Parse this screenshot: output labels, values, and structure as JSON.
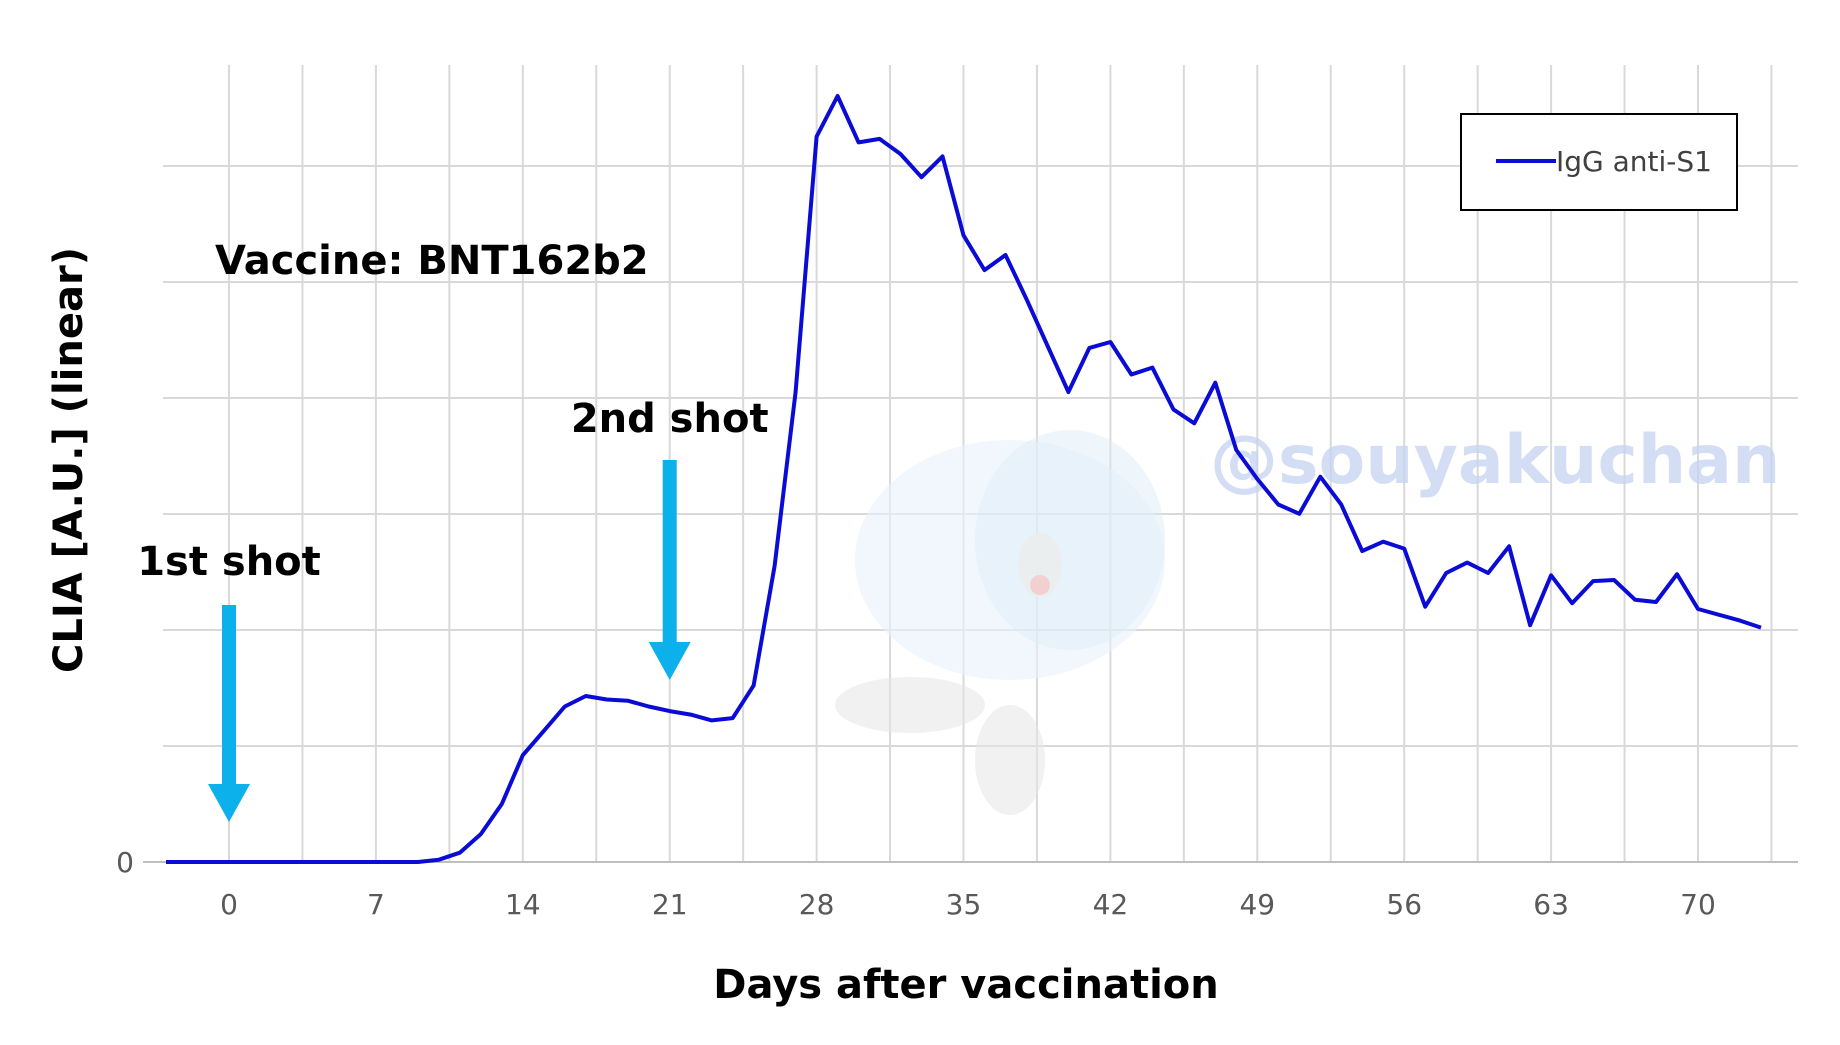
{
  "chart_data": {
    "type": "line",
    "xlabel": "Days after vaccination",
    "ylabel": "CLIA [A.U.] (linear)",
    "x_ticks": [
      0,
      7,
      14,
      21,
      28,
      35,
      42,
      49,
      56,
      63,
      70
    ],
    "y_tick_labels": [
      "0"
    ],
    "xlim": [
      -3,
      75
    ],
    "ylim": [
      0,
      66
    ],
    "grid": true,
    "legend_position": "top-right",
    "series": [
      {
        "name": "IgG anti-S1",
        "color": "#0b0bd6",
        "points": [
          [
            -3,
            0
          ],
          [
            0,
            0
          ],
          [
            5,
            0
          ],
          [
            9,
            0
          ],
          [
            10,
            0.2
          ],
          [
            11,
            0.8
          ],
          [
            12,
            2.4
          ],
          [
            13,
            5
          ],
          [
            14,
            9.2
          ],
          [
            15,
            11.3
          ],
          [
            16,
            13.4
          ],
          [
            17,
            14.3
          ],
          [
            18,
            14.0
          ],
          [
            19,
            13.9
          ],
          [
            20,
            13.4
          ],
          [
            21,
            13.0
          ],
          [
            22,
            12.7
          ],
          [
            23,
            12.2
          ],
          [
            24,
            12.4
          ],
          [
            25,
            15.2
          ],
          [
            26,
            25.5
          ],
          [
            27,
            40.5
          ],
          [
            28,
            62.5
          ],
          [
            29,
            66.0
          ],
          [
            30,
            62.0
          ],
          [
            31,
            62.3
          ],
          [
            32,
            61.0
          ],
          [
            33,
            59.0
          ],
          [
            34,
            60.8
          ],
          [
            35,
            54.0
          ],
          [
            36,
            51.0
          ],
          [
            37,
            52.3
          ],
          [
            38,
            48.5
          ],
          [
            39,
            44.5
          ],
          [
            40,
            40.5
          ],
          [
            41,
            44.3
          ],
          [
            42,
            44.8
          ],
          [
            43,
            42.0
          ],
          [
            44,
            42.6
          ],
          [
            45,
            39.0
          ],
          [
            46,
            37.8
          ],
          [
            47,
            41.3
          ],
          [
            48,
            35.5
          ],
          [
            49,
            33.0
          ],
          [
            50,
            30.8
          ],
          [
            51,
            30.0
          ],
          [
            52,
            33.2
          ],
          [
            53,
            30.8
          ],
          [
            54,
            26.8
          ],
          [
            55,
            27.6
          ],
          [
            56,
            27.0
          ],
          [
            57,
            22.0
          ],
          [
            58,
            24.9
          ],
          [
            59,
            25.8
          ],
          [
            60,
            24.9
          ],
          [
            61,
            27.2
          ],
          [
            62,
            20.4
          ],
          [
            63,
            24.7
          ],
          [
            64,
            22.3
          ],
          [
            65,
            24.2
          ],
          [
            66,
            24.3
          ],
          [
            67,
            22.6
          ],
          [
            68,
            22.4
          ],
          [
            69,
            24.8
          ],
          [
            70,
            21.8
          ],
          [
            72,
            20.8
          ],
          [
            73,
            20.2
          ]
        ]
      }
    ],
    "annotations": [
      {
        "text": "1st shot",
        "x": 0,
        "color": "#0cb0ea"
      },
      {
        "text": "2nd shot",
        "x": 21,
        "color": "#0cb0ea"
      }
    ]
  },
  "vaccine_label": "Vaccine: BNT162b2",
  "watermark": "@souyakuchan",
  "colors": {
    "grid": "#d9d9d9",
    "axis": "#bfbfbf",
    "line": "#0b0bd6",
    "arrow": "#0cb0ea"
  }
}
